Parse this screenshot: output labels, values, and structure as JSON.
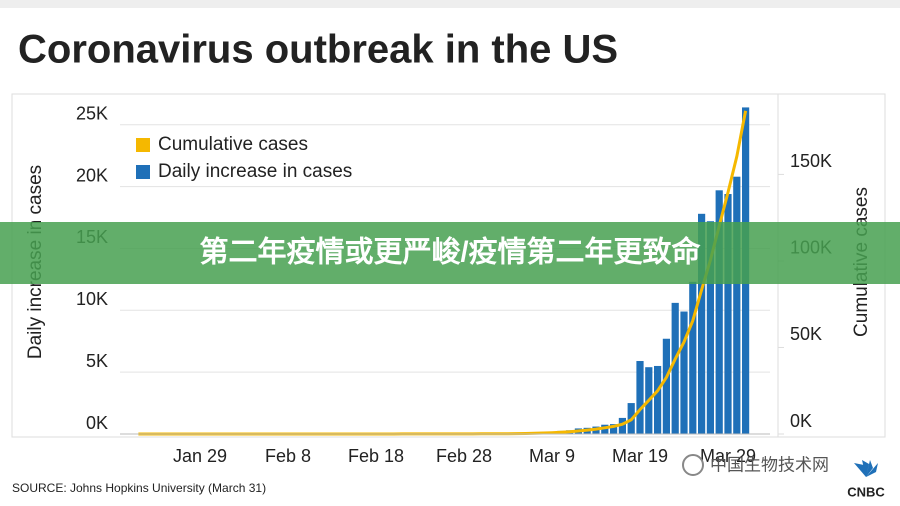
{
  "chart_data": {
    "type": "bar_line",
    "title": "Coronavirus outbreak in the US",
    "ylabel": "Daily increase in cases",
    "y2label": "Cumulative cases",
    "source": "SOURCE: Johns Hopkins University (March 31)",
    "categories": [
      null,
      null,
      null,
      null,
      null,
      null,
      null,
      "Jan 29",
      null,
      null,
      null,
      null,
      null,
      null,
      null,
      null,
      null,
      "Feb 8",
      null,
      null,
      null,
      null,
      null,
      null,
      null,
      null,
      null,
      "Feb 18",
      null,
      null,
      null,
      null,
      null,
      null,
      null,
      null,
      null,
      "Feb 28",
      null,
      null,
      null,
      null,
      null,
      null,
      null,
      null,
      null,
      "Mar 9",
      null,
      null,
      null,
      null,
      null,
      null,
      null,
      null,
      null,
      "Mar 19",
      null,
      null,
      null,
      null,
      null,
      null,
      null,
      null,
      null,
      "Mar 29",
      null,
      null
    ],
    "series": [
      {
        "name": "Cumulative cases",
        "color": "#f5b800",
        "axis": "y2",
        "kind": "line",
        "values": [
          1,
          1,
          2,
          2,
          5,
          5,
          5,
          5,
          5,
          6,
          7,
          8,
          11,
          11,
          11,
          12,
          12,
          12,
          12,
          12,
          13,
          13,
          14,
          14,
          14,
          14,
          14,
          14,
          14,
          14,
          34,
          34,
          34,
          52,
          53,
          59,
          60,
          66,
          70,
          90,
          120,
          140,
          170,
          230,
          310,
          430,
          550,
          730,
          980,
          1280,
          1730,
          2230,
          2830,
          3580,
          4380,
          5680,
          8180,
          14080,
          19480,
          24980,
          32680,
          43280,
          53180,
          65480,
          83280,
          100480,
          120180,
          139580,
          160380,
          186780
        ]
      },
      {
        "name": "Daily increase in cases",
        "color": "#1f70b8",
        "kind": "bar",
        "values": [
          1,
          0,
          1,
          0,
          3,
          0,
          0,
          0,
          0,
          1,
          1,
          1,
          3,
          0,
          0,
          1,
          0,
          0,
          0,
          0,
          1,
          0,
          1,
          0,
          0,
          0,
          0,
          0,
          0,
          0,
          20,
          0,
          0,
          18,
          1,
          6,
          1,
          6,
          4,
          20,
          30,
          20,
          30,
          60,
          80,
          120,
          120,
          180,
          250,
          300,
          450,
          500,
          600,
          750,
          800,
          1300,
          2500,
          5900,
          5400,
          5500,
          7700,
          10600,
          9900,
          12300,
          17800,
          17200,
          19700,
          19400,
          20800,
          26400
        ]
      }
    ],
    "ylim": [
      0,
      27000
    ],
    "yticks": [
      {
        "value": 0,
        "label": "0K"
      },
      {
        "value": 5000,
        "label": "5K"
      },
      {
        "value": 10000,
        "label": "10K"
      },
      {
        "value": 15000,
        "label": "15K"
      },
      {
        "value": 20000,
        "label": "20K"
      },
      {
        "value": 25000,
        "label": "25K"
      }
    ],
    "y2lim": [
      0,
      193000
    ],
    "y2ticks": [
      {
        "value": 0,
        "label": "0K"
      },
      {
        "value": 50000,
        "label": "50K"
      },
      {
        "value": 100000,
        "label": "100K"
      },
      {
        "value": 150000,
        "label": "150K"
      }
    ],
    "grid": true,
    "legend": "upper left"
  },
  "banner": {
    "text": "第二年疫情或更严峻/疫情第二年更致命"
  },
  "watermark": "中国生物技术网",
  "logo": "CNBC"
}
